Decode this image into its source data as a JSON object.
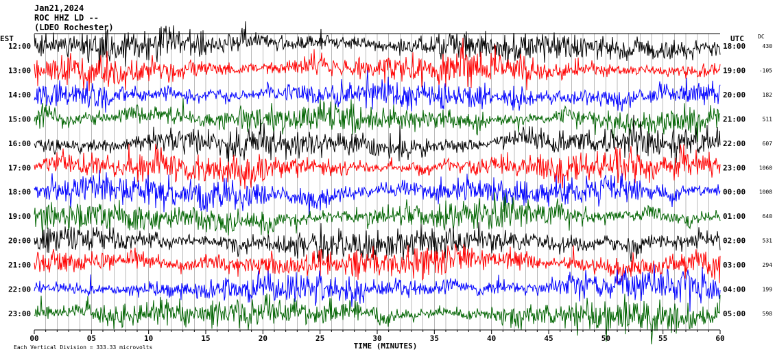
{
  "header": {
    "line1": "Jan21,2024",
    "line2": "ROC HHZ LD --",
    "line3": "(LDEO Rochester)"
  },
  "left_tz": "EST",
  "right_tz": "UTC",
  "dc_header": "DC",
  "footer": {
    "xlabel": "TIME (MINUTES)",
    "scale_note": "Each Vertical Division =  333.33 microvolts"
  },
  "colors": {
    "cycle": [
      "#000000",
      "#ff0000",
      "#0000ff",
      "#006400"
    ],
    "gridline": "#888888"
  },
  "chart_data": {
    "type": "line",
    "x_range": [
      0,
      60
    ],
    "x_ticks": [
      "00",
      "05",
      "10",
      "15",
      "20",
      "25",
      "30",
      "35",
      "40",
      "45",
      "50",
      "55",
      "60"
    ],
    "rows": [
      {
        "est": "12:00",
        "utc": "18:00",
        "dc": "430"
      },
      {
        "est": "13:00",
        "utc": "19:00",
        "dc": "-105"
      },
      {
        "est": "14:00",
        "utc": "20:00",
        "dc": "182"
      },
      {
        "est": "15:00",
        "utc": "21:00",
        "dc": "511"
      },
      {
        "est": "16:00",
        "utc": "22:00",
        "dc": "607"
      },
      {
        "est": "17:00",
        "utc": "23:00",
        "dc": "1060"
      },
      {
        "est": "18:00",
        "utc": "00:00",
        "dc": "1008"
      },
      {
        "est": "19:00",
        "utc": "01:00",
        "dc": "640"
      },
      {
        "est": "20:00",
        "utc": "02:00",
        "dc": "531"
      },
      {
        "est": "21:00",
        "utc": "03:00",
        "dc": "294"
      },
      {
        "est": "22:00",
        "utc": "04:00",
        "dc": "199"
      },
      {
        "est": "23:00",
        "utc": "05:00",
        "dc": "598"
      }
    ]
  }
}
